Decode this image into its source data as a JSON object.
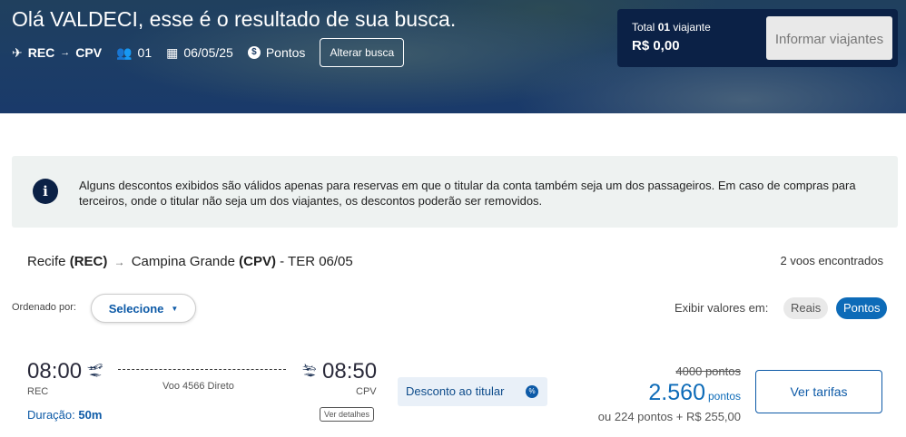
{
  "header": {
    "title": "Olá VALDECI, esse é o resultado de sua busca.",
    "origin": "REC",
    "destination": "CPV",
    "passengers": "01",
    "date": "06/05/25",
    "payment": "Pontos",
    "change_search": "Alterar busca"
  },
  "summary": {
    "total_prefix": "Total",
    "total_count": "01",
    "total_suffix": "viajante",
    "amount": "R$ 0,00",
    "inform_button": "Informar viajantes"
  },
  "notice": {
    "text": "Alguns descontos exibidos são válidos apenas para reservas em que o titular da conta também seja um dos passageiros. Em caso de compras para terceiros, onde o titular não seja um dos viajantes, os descontos poderão ser removidos."
  },
  "route": {
    "origin_city": "Recife",
    "origin_code": "(REC)",
    "dest_city": "Campina Grande",
    "dest_code": "(CPV)",
    "date": "- TER 06/05",
    "found": "2 voos encontrados"
  },
  "sort": {
    "label": "Ordenado por:",
    "value": "Selecione"
  },
  "display": {
    "label": "Exibir valores em:",
    "options": [
      "Reais",
      "Pontos"
    ],
    "selected": "Pontos"
  },
  "flight": {
    "dep_time": "08:00",
    "dep_code": "REC",
    "arr_time": "08:50",
    "arr_code": "CPV",
    "info": "Voo 4566 Direto",
    "duration_label": "Duração:",
    "duration": "50m",
    "details": "Ver detalhes",
    "discount": "Desconto ao titular",
    "old_price": "4000 pontos",
    "price": "2.560",
    "price_unit": "pontos",
    "alt_price": "ou 224 pontos + R$ 255,00",
    "select": "Ver tarifas"
  },
  "colors": {
    "accent": "#0d6bb8",
    "dark": "#0b2146"
  }
}
